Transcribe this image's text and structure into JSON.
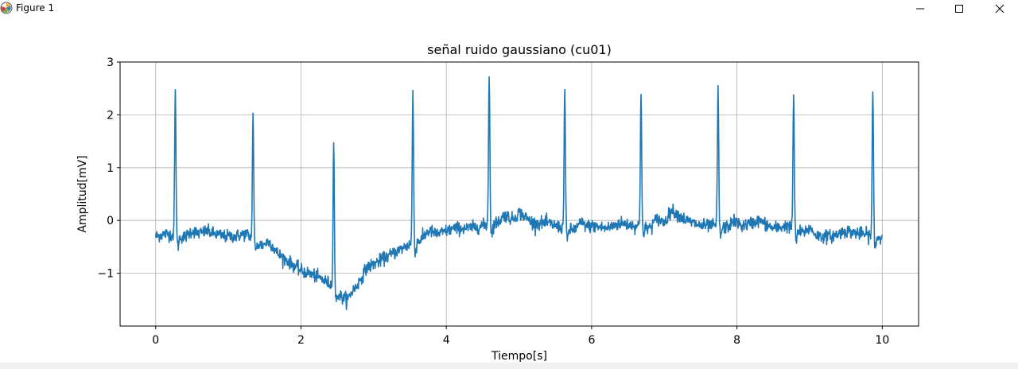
{
  "window": {
    "title": "Figure 1",
    "minimize_icon": "minimize-icon",
    "maximize_icon": "maximize-icon",
    "close_icon": "close-icon"
  },
  "colors": {
    "line": "#1f77b4",
    "grid": "#b0b0b0",
    "axes": "#000000",
    "toolbar": "#f0f0f0"
  },
  "chart_data": {
    "type": "line",
    "title": "señal ruido gaussiano (cu01)",
    "xlabel": "Tiempo[s]",
    "ylabel": "Amplitud[mV]",
    "xlim": [
      -0.49,
      10.5
    ],
    "ylim": [
      -2.0,
      3.0
    ],
    "xticks": [
      0,
      2,
      4,
      6,
      8,
      10
    ],
    "xtick_labels": [
      "0",
      "2",
      "4",
      "6",
      "8",
      "10"
    ],
    "yticks": [
      -1,
      0,
      1,
      2,
      3
    ],
    "ytick_labels": [
      "−1",
      "0",
      "1",
      "2",
      "3"
    ],
    "grid": true,
    "series": [
      {
        "baseline": {
          "x": [
            0,
            0.15,
            0.3,
            0.45,
            0.6,
            0.7,
            0.8,
            0.95,
            1.1,
            1.25,
            1.4,
            1.6,
            1.8,
            2.0,
            2.2,
            2.4,
            2.55,
            2.65,
            2.75,
            2.9,
            3.1,
            3.3,
            3.5,
            3.7,
            3.9,
            4.1,
            4.3,
            4.5,
            4.7,
            4.9,
            5.0,
            5.2,
            5.4,
            5.6,
            5.8,
            6.0,
            6.2,
            6.4,
            6.6,
            6.8,
            7.0,
            7.1,
            7.3,
            7.5,
            7.7,
            7.9,
            8.1,
            8.3,
            8.5,
            8.7,
            8.9,
            9.1,
            9.3,
            9.5,
            9.7,
            9.9,
            10.0
          ],
          "y": [
            -0.3,
            -0.25,
            -0.3,
            -0.35,
            -0.25,
            -0.2,
            -0.25,
            -0.3,
            -0.3,
            -0.25,
            -0.45,
            -0.55,
            -0.75,
            -0.95,
            -1.05,
            -1.2,
            -1.45,
            -1.6,
            -1.3,
            -0.9,
            -0.75,
            -0.6,
            -0.45,
            -0.35,
            -0.25,
            -0.15,
            -0.15,
            -0.1,
            -0.05,
            0.0,
            0.15,
            -0.05,
            -0.05,
            -0.15,
            -0.2,
            -0.1,
            -0.15,
            -0.05,
            -0.1,
            -0.15,
            -0.05,
            0.2,
            0.0,
            -0.1,
            -0.1,
            -0.15,
            -0.1,
            0.0,
            -0.15,
            -0.1,
            -0.25,
            -0.3,
            -0.3,
            -0.2,
            -0.25,
            -0.3,
            -0.35
          ]
        },
        "peaks": {
          "x": [
            0.27,
            1.34,
            2.45,
            3.54,
            4.59,
            5.63,
            6.68,
            7.74,
            8.78,
            9.87
          ],
          "y": [
            2.42,
            1.99,
            1.47,
            2.41,
            2.78,
            2.48,
            2.45,
            2.5,
            2.39,
            2.4
          ]
        },
        "noise_sd": 0.06,
        "x_range": [
          0,
          10
        ]
      }
    ]
  }
}
